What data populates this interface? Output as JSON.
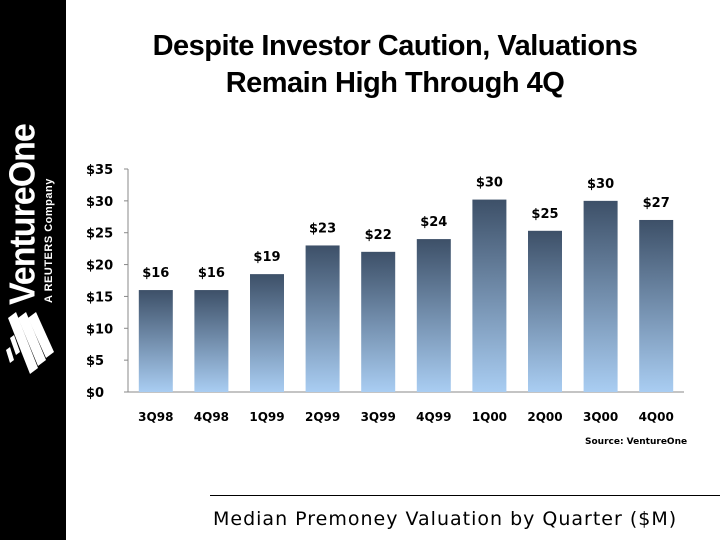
{
  "brand": {
    "name": "VentureOne",
    "tagline": "A REUTERS Company"
  },
  "colors": {
    "sidebar": "#000000",
    "bar_top": "#3d5068",
    "bar_bottom": "#a9cdf2",
    "axis": "#888888"
  },
  "chart_data": {
    "type": "bar",
    "title": "Despite Investor Caution, Valuations Remain High Through 4Q",
    "title_lines": [
      "Despite Investor Caution, Valuations",
      "Remain High Through 4Q"
    ],
    "subtitle": "Median Premoney Valuation by Quarter ($M)",
    "categories": [
      "3Q98",
      "4Q98",
      "1Q99",
      "2Q99",
      "3Q99",
      "4Q99",
      "1Q00",
      "2Q00",
      "3Q00",
      "4Q00"
    ],
    "values": [
      16,
      16,
      18.5,
      23,
      22,
      24,
      30.2,
      25.3,
      30,
      27
    ],
    "data_labels": [
      "$16",
      "$16",
      "$19",
      "$23",
      "$22",
      "$24",
      "$30",
      "$25",
      "$30",
      "$27"
    ],
    "yticks": [
      0,
      5,
      10,
      15,
      20,
      25,
      30,
      35
    ],
    "ytick_labels": [
      "$0",
      "$5",
      "$10",
      "$15",
      "$20",
      "$25",
      "$30",
      "$35"
    ],
    "ylim": [
      0,
      35
    ],
    "xlabel": "",
    "ylabel": "",
    "grid": false,
    "legend": "none",
    "source": "Source: VentureOne"
  }
}
